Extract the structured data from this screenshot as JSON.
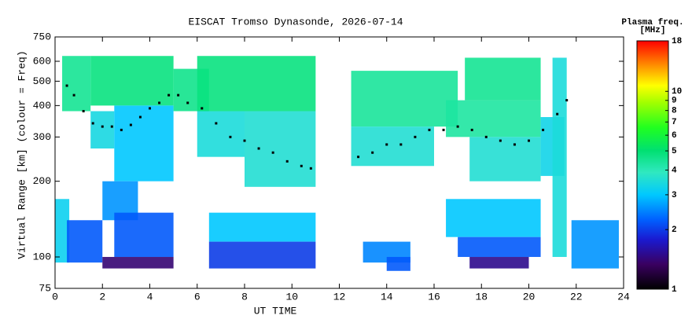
{
  "chart_data": {
    "type": "heatmap",
    "title": "EISCAT Tromso Dynasonde, 2026-07-14",
    "xlabel": "UT TIME",
    "ylabel": "Virtual Range [km] (colour = Freq)",
    "colorbar_title": [
      "Plasma freq.",
      "[MHz]"
    ],
    "xlim": [
      0,
      24
    ],
    "xticks": [
      0,
      2,
      4,
      6,
      8,
      10,
      12,
      14,
      16,
      18,
      20,
      22,
      24
    ],
    "ylim": [
      75,
      750
    ],
    "yticks": [
      75,
      100,
      200,
      300,
      400,
      500,
      600,
      750
    ],
    "ylog": true,
    "clim": [
      1,
      18
    ],
    "cticks": [
      1,
      2,
      3,
      4,
      5,
      6,
      7,
      8,
      9,
      10,
      18
    ],
    "clog": true,
    "x_start": [
      0.0,
      0.3,
      0.5,
      1.5,
      1.5,
      2.5,
      2.0,
      2.5,
      2.0,
      5.0,
      6.0,
      6.0,
      8.0,
      6.5,
      6.5,
      12.5,
      12.5,
      13.0,
      14.0,
      16.5,
      17.3,
      17.5,
      16.5,
      17.0,
      17.5,
      20.5,
      21.0,
      21.8
    ],
    "x_end": [
      0.6,
      1.5,
      2.0,
      5.0,
      2.5,
      5.0,
      3.5,
      5.0,
      5.0,
      6.5,
      11.0,
      8.0,
      11.0,
      11.0,
      11.0,
      17.0,
      16.0,
      15.0,
      15.0,
      20.5,
      20.5,
      20.5,
      20.5,
      20.5,
      20.0,
      21.5,
      21.6,
      23.8
    ],
    "range_low": [
      95,
      380,
      95,
      400,
      270,
      200,
      140,
      100,
      90,
      380,
      380,
      250,
      190,
      115,
      90,
      330,
      230,
      95,
      88,
      300,
      420,
      200,
      120,
      100,
      90,
      210,
      100,
      90
    ],
    "range_high": [
      170,
      630,
      140,
      630,
      380,
      400,
      200,
      150,
      100,
      560,
      630,
      380,
      380,
      150,
      115,
      550,
      330,
      115,
      100,
      420,
      620,
      300,
      170,
      120,
      100,
      360,
      620,
      140
    ],
    "freq": [
      3.2,
      4.5,
      2.2,
      4.8,
      3.4,
      3.0,
      2.6,
      2.2,
      1.4,
      4.6,
      4.8,
      3.5,
      3.6,
      3.0,
      2.0,
      4.4,
      3.6,
      2.5,
      2.2,
      4.3,
      4.5,
      3.6,
      3.0,
      2.2,
      1.5,
      3.3,
      3.5,
      2.6
    ],
    "trace": {
      "color": "#000000",
      "x": [
        0.5,
        0.8,
        1.2,
        1.6,
        2.0,
        2.4,
        2.8,
        3.2,
        3.6,
        4.0,
        4.4,
        4.8,
        5.2,
        5.6,
        6.2,
        6.8,
        7.4,
        8.0,
        8.6,
        9.2,
        9.8,
        10.4,
        10.8,
        12.8,
        13.4,
        14.0,
        14.6,
        15.2,
        15.8,
        16.4,
        17.0,
        17.6,
        18.2,
        18.8,
        19.4,
        20.0,
        20.6,
        21.2,
        21.6
      ],
      "y": [
        480,
        440,
        380,
        340,
        330,
        330,
        320,
        335,
        360,
        390,
        410,
        440,
        440,
        410,
        390,
        340,
        300,
        290,
        270,
        260,
        240,
        230,
        225,
        250,
        260,
        280,
        280,
        300,
        320,
        320,
        330,
        320,
        300,
        290,
        280,
        290,
        320,
        370,
        420
      ]
    }
  }
}
